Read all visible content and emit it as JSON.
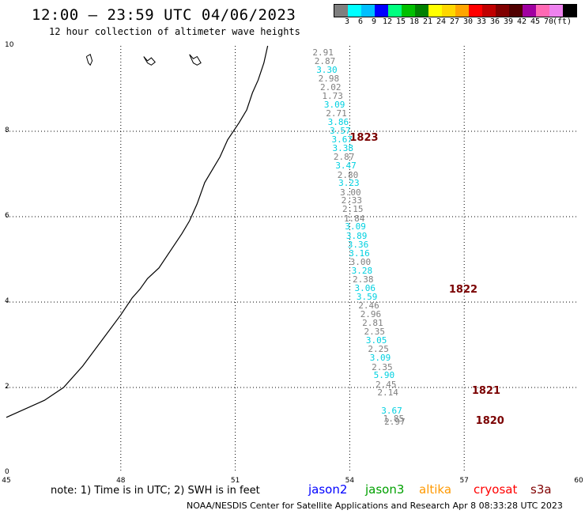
{
  "title": "12:00 – 23:59 UTC 04/06/2023",
  "subtitle": "12 hour collection of altimeter wave heights",
  "colorbar": {
    "colors": [
      "#7f7f7f",
      "#00ffff",
      "#00bfff",
      "#0000ff",
      "#00ff7f",
      "#00c000",
      "#008000",
      "#ffff00",
      "#ffd700",
      "#ffa500",
      "#ff0000",
      "#c00000",
      "#800000",
      "#500000",
      "#a000a0",
      "#ff69b4",
      "#ee82ee",
      "#000000"
    ],
    "labels": [
      "3",
      "6",
      "9",
      "12",
      "15",
      "18",
      "21",
      "24",
      "27",
      "30",
      "33",
      "36",
      "39",
      "42",
      "45",
      "70",
      "(ft)"
    ]
  },
  "map": {
    "xlim": [
      45,
      60
    ],
    "ylim": [
      0,
      10
    ],
    "xticks": [
      "45",
      "48",
      "51",
      "54",
      "57",
      "60"
    ],
    "yticks": [
      "0",
      "2",
      "4",
      "6",
      "8",
      "10"
    ]
  },
  "wave_heights": [
    {
      "v": "2.91",
      "c": "#7f7f7f",
      "x": 53.3,
      "y": 9.85
    },
    {
      "v": "2.87",
      "c": "#7f7f7f",
      "x": 53.35,
      "y": 9.64
    },
    {
      "v": "3.30",
      "c": "#00d0e0",
      "x": 53.4,
      "y": 9.44
    },
    {
      "v": "2.98",
      "c": "#7f7f7f",
      "x": 53.45,
      "y": 9.24
    },
    {
      "v": "2.02",
      "c": "#7f7f7f",
      "x": 53.5,
      "y": 9.03
    },
    {
      "v": "1.73",
      "c": "#7f7f7f",
      "x": 53.55,
      "y": 8.83
    },
    {
      "v": "3.09",
      "c": "#00d0e0",
      "x": 53.6,
      "y": 8.63
    },
    {
      "v": "2.71",
      "c": "#7f7f7f",
      "x": 53.65,
      "y": 8.42
    },
    {
      "v": "3.86",
      "c": "#00d0e0",
      "x": 53.7,
      "y": 8.22
    },
    {
      "v": "3.57",
      "c": "#00d0e0",
      "x": 53.75,
      "y": 8.01
    },
    {
      "v": "3.67",
      "c": "#00d0e0",
      "x": 53.8,
      "y": 7.81
    },
    {
      "v": "3.38",
      "c": "#00d0e0",
      "x": 53.82,
      "y": 7.61
    },
    {
      "v": "2.87",
      "c": "#7f7f7f",
      "x": 53.85,
      "y": 7.4
    },
    {
      "v": "3.47",
      "c": "#00d0e0",
      "x": 53.9,
      "y": 7.2
    },
    {
      "v": "2.80",
      "c": "#7f7f7f",
      "x": 53.95,
      "y": 6.99
    },
    {
      "v": "3.23",
      "c": "#00d0e0",
      "x": 53.98,
      "y": 6.79
    },
    {
      "v": "3.00",
      "c": "#7f7f7f",
      "x": 54.02,
      "y": 6.58
    },
    {
      "v": "2.33",
      "c": "#7f7f7f",
      "x": 54.05,
      "y": 6.38
    },
    {
      "v": "2.15",
      "c": "#7f7f7f",
      "x": 54.08,
      "y": 6.18
    },
    {
      "v": "1.84",
      "c": "#7f7f7f",
      "x": 54.12,
      "y": 5.97
    },
    {
      "v": "3.09",
      "c": "#00d0e0",
      "x": 54.15,
      "y": 5.77
    },
    {
      "v": "3.89",
      "c": "#00d0e0",
      "x": 54.18,
      "y": 5.56
    },
    {
      "v": "3.36",
      "c": "#00d0e0",
      "x": 54.22,
      "y": 5.36
    },
    {
      "v": "3.16",
      "c": "#00d0e0",
      "x": 54.25,
      "y": 5.15
    },
    {
      "v": "3.00",
      "c": "#7f7f7f",
      "x": 54.28,
      "y": 4.95
    },
    {
      "v": "3.28",
      "c": "#00d0e0",
      "x": 54.32,
      "y": 4.74
    },
    {
      "v": "2.38",
      "c": "#7f7f7f",
      "x": 54.35,
      "y": 4.54
    },
    {
      "v": "3.06",
      "c": "#00d0e0",
      "x": 54.4,
      "y": 4.33
    },
    {
      "v": "3.59",
      "c": "#00d0e0",
      "x": 54.45,
      "y": 4.13
    },
    {
      "v": "2.46",
      "c": "#7f7f7f",
      "x": 54.5,
      "y": 3.92
    },
    {
      "v": "2.96",
      "c": "#7f7f7f",
      "x": 54.55,
      "y": 3.72
    },
    {
      "v": "2.81",
      "c": "#7f7f7f",
      "x": 54.6,
      "y": 3.52
    },
    {
      "v": "2.35",
      "c": "#7f7f7f",
      "x": 54.65,
      "y": 3.31
    },
    {
      "v": "3.05",
      "c": "#00d0e0",
      "x": 54.7,
      "y": 3.11
    },
    {
      "v": "2.25",
      "c": "#7f7f7f",
      "x": 54.75,
      "y": 2.9
    },
    {
      "v": "3.09",
      "c": "#00d0e0",
      "x": 54.8,
      "y": 2.7
    },
    {
      "v": "2.35",
      "c": "#7f7f7f",
      "x": 54.85,
      "y": 2.49
    },
    {
      "v": "5.90",
      "c": "#00d0e0",
      "x": 54.9,
      "y": 2.29
    },
    {
      "v": "2.45",
      "c": "#7f7f7f",
      "x": 54.95,
      "y": 2.08
    },
    {
      "v": "2.14",
      "c": "#7f7f7f",
      "x": 55.0,
      "y": 1.88
    },
    {
      "v": "3.67",
      "c": "#00d0e0",
      "x": 55.1,
      "y": 1.47
    },
    {
      "v": "1.85",
      "c": "#7f7f7f",
      "x": 55.15,
      "y": 1.27
    },
    {
      "v": "2.97",
      "c": "#7f7f7f",
      "x": 55.18,
      "y": 1.2
    }
  ],
  "time_labels": [
    {
      "t": "1823",
      "x": 54.0,
      "y": 7.85
    },
    {
      "t": "1822",
      "x": 56.6,
      "y": 4.3
    },
    {
      "t": "1821",
      "x": 57.2,
      "y": 1.93
    },
    {
      "t": "1820",
      "x": 57.3,
      "y": 1.22
    }
  ],
  "coastline": [
    [
      45.0,
      1.3
    ],
    [
      46.0,
      1.7
    ],
    [
      46.5,
      2.0
    ],
    [
      47.0,
      2.5
    ],
    [
      47.5,
      3.1
    ],
    [
      48.0,
      3.7
    ],
    [
      48.3,
      4.1
    ],
    [
      48.5,
      4.3
    ],
    [
      48.7,
      4.55
    ],
    [
      49.0,
      4.8
    ],
    [
      49.3,
      5.2
    ],
    [
      49.6,
      5.6
    ],
    [
      49.8,
      5.9
    ],
    [
      50.0,
      6.3
    ],
    [
      50.2,
      6.8
    ],
    [
      50.4,
      7.1
    ],
    [
      50.6,
      7.4
    ],
    [
      50.8,
      7.8
    ],
    [
      51.1,
      8.2
    ],
    [
      51.3,
      8.5
    ],
    [
      51.45,
      8.9
    ],
    [
      51.6,
      9.2
    ],
    [
      51.75,
      9.6
    ],
    [
      51.85,
      10.0
    ]
  ],
  "islands": [
    [
      [
        47.1,
        9.75
      ],
      [
        47.15,
        9.6
      ],
      [
        47.2,
        9.55
      ],
      [
        47.25,
        9.65
      ],
      [
        47.2,
        9.8
      ],
      [
        47.1,
        9.75
      ]
    ],
    [
      [
        48.6,
        9.75
      ],
      [
        48.7,
        9.65
      ],
      [
        48.8,
        9.72
      ],
      [
        48.9,
        9.62
      ],
      [
        48.8,
        9.55
      ],
      [
        48.7,
        9.6
      ],
      [
        48.6,
        9.75
      ]
    ],
    [
      [
        49.8,
        9.8
      ],
      [
        49.9,
        9.7
      ],
      [
        50.0,
        9.75
      ],
      [
        50.1,
        9.6
      ],
      [
        50.0,
        9.55
      ],
      [
        49.9,
        9.6
      ],
      [
        49.8,
        9.8
      ]
    ]
  ],
  "note": "note: 1) Time is in UTC; 2) SWH is in feet",
  "satellites": [
    {
      "name": "jason2",
      "color": "#0000ff"
    },
    {
      "name": "jason3",
      "color": "#00a000"
    },
    {
      "name": "altika",
      "color": "#ff9900"
    },
    {
      "name": "cryosat",
      "color": "#ff0000"
    },
    {
      "name": "s3a",
      "color": "#800000"
    }
  ],
  "credit": "NOAA/NESDIS Center for Satellite Applications and Research   Apr  8 08:33:28 UTC 2023"
}
